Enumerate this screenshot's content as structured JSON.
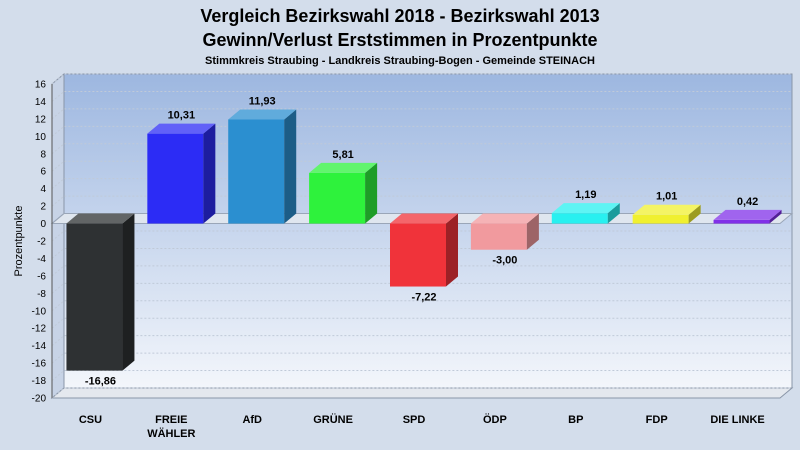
{
  "title": {
    "line1": "Vergleich Bezirkswahl 2018 - Bezirkswahl 2013",
    "line2": "Gewinn/Verlust Erststimmen in Prozentpunkte",
    "subtitle": "Stimmkreis Straubing - Landkreis Straubing-Bogen - Gemeinde STEINACH"
  },
  "chart_data": {
    "type": "bar",
    "title": "Vergleich Bezirkswahl 2018 - Bezirkswahl 2013 / Gewinn/Verlust Erststimmen in Prozentpunkte",
    "subtitle": "Stimmkreis Straubing - Landkreis Straubing-Bogen - Gemeinde STEINACH",
    "xlabel": "",
    "ylabel": "Prozentpunkte",
    "ylim": [
      -20,
      16
    ],
    "ytick_step": 2,
    "grid": true,
    "legend": "none",
    "categories": [
      "CSU",
      "FREIE WÄHLER",
      "AfD",
      "GRÜNE",
      "SPD",
      "ÖDP",
      "BP",
      "FDP",
      "DIE LINKE"
    ],
    "category_lines": [
      [
        "CSU"
      ],
      [
        "FREIE",
        "WÄHLER"
      ],
      [
        "AfD"
      ],
      [
        "GRÜNE"
      ],
      [
        "SPD"
      ],
      [
        "ÖDP"
      ],
      [
        "BP"
      ],
      [
        "FDP"
      ],
      [
        "DIE LINKE"
      ]
    ],
    "values": [
      -16.86,
      10.31,
      11.93,
      5.81,
      -7.22,
      -3.0,
      1.19,
      1.01,
      0.42
    ],
    "value_labels": [
      "-16,86",
      "10,31",
      "11,93",
      "5,81",
      "-7,22",
      "-3,00",
      "1,19",
      "1,01",
      "0,42"
    ],
    "colors": [
      "#2e3133",
      "#2c2cf5",
      "#2b8fd0",
      "#2ef23c",
      "#f0333a",
      "#f19a9e",
      "#28f0f0",
      "#f0f030",
      "#8030e8"
    ]
  }
}
